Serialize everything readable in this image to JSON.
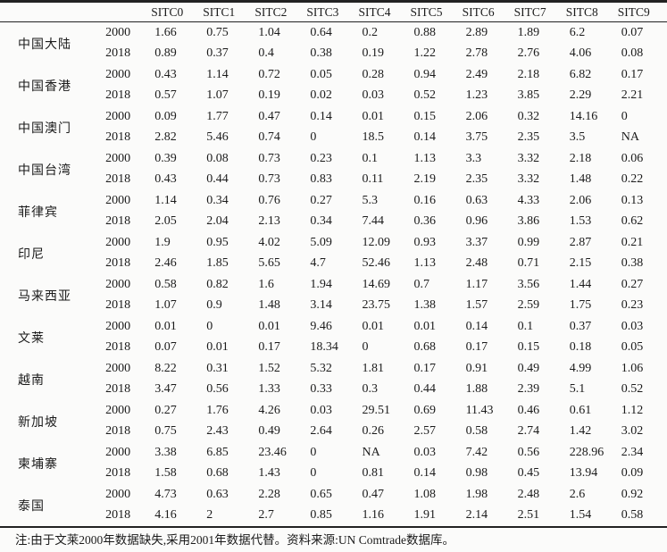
{
  "table": {
    "col_headers": [
      "SITC0",
      "SITC1",
      "SITC2",
      "SITC3",
      "SITC4",
      "SITC5",
      "SITC6",
      "SITC7",
      "SITC8",
      "SITC9"
    ],
    "regions": [
      {
        "name": "中国大陆",
        "rows": [
          {
            "year": "2000",
            "values": [
              "1.66",
              "0.75",
              "1.04",
              "0.64",
              "0.2",
              "0.88",
              "2.89",
              "1.89",
              "6.2",
              "0.07"
            ]
          },
          {
            "year": "2018",
            "values": [
              "0.89",
              "0.37",
              "0.4",
              "0.38",
              "0.19",
              "1.22",
              "2.78",
              "2.76",
              "4.06",
              "0.08"
            ]
          }
        ]
      },
      {
        "name": "中国香港",
        "rows": [
          {
            "year": "2000",
            "values": [
              "0.43",
              "1.14",
              "0.72",
              "0.05",
              "0.28",
              "0.94",
              "2.49",
              "2.18",
              "6.82",
              "0.17"
            ]
          },
          {
            "year": "2018",
            "values": [
              "0.57",
              "1.07",
              "0.19",
              "0.02",
              "0.03",
              "0.52",
              "1.23",
              "3.85",
              "2.29",
              "2.21"
            ]
          }
        ]
      },
      {
        "name": "中国澳门",
        "rows": [
          {
            "year": "2000",
            "values": [
              "0.09",
              "1.77",
              "0.47",
              "0.14",
              "0.01",
              "0.15",
              "2.06",
              "0.32",
              "14.16",
              "0"
            ]
          },
          {
            "year": "2018",
            "values": [
              "2.82",
              "5.46",
              "0.74",
              "0",
              "18.5",
              "0.14",
              "3.75",
              "2.35",
              "3.5",
              "NA"
            ]
          }
        ]
      },
      {
        "name": "中国台湾",
        "rows": [
          {
            "year": "2000",
            "values": [
              "0.39",
              "0.08",
              "0.73",
              "0.23",
              "0.1",
              "1.13",
              "3.3",
              "3.32",
              "2.18",
              "0.06"
            ]
          },
          {
            "year": "2018",
            "values": [
              "0.43",
              "0.44",
              "0.73",
              "0.83",
              "0.11",
              "2.19",
              "2.35",
              "3.32",
              "1.48",
              "0.22"
            ]
          }
        ]
      },
      {
        "name": "菲律宾",
        "rows": [
          {
            "year": "2000",
            "values": [
              "1.14",
              "0.34",
              "0.76",
              "0.27",
              "5.3",
              "0.16",
              "0.63",
              "4.33",
              "2.06",
              "0.13"
            ]
          },
          {
            "year": "2018",
            "values": [
              "2.05",
              "2.04",
              "2.13",
              "0.34",
              "7.44",
              "0.36",
              "0.96",
              "3.86",
              "1.53",
              "0.62"
            ]
          }
        ]
      },
      {
        "name": "印尼",
        "rows": [
          {
            "year": "2000",
            "values": [
              "1.9",
              "0.95",
              "4.02",
              "5.09",
              "12.09",
              "0.93",
              "3.37",
              "0.99",
              "2.87",
              "0.21"
            ]
          },
          {
            "year": "2018",
            "values": [
              "2.46",
              "1.85",
              "5.65",
              "4.7",
              "52.46",
              "1.13",
              "2.48",
              "0.71",
              "2.15",
              "0.38"
            ]
          }
        ]
      },
      {
        "name": "马来西亚",
        "rows": [
          {
            "year": "2000",
            "values": [
              "0.58",
              "0.82",
              "1.6",
              "1.94",
              "14.69",
              "0.7",
              "1.17",
              "3.56",
              "1.44",
              "0.27"
            ]
          },
          {
            "year": "2018",
            "values": [
              "1.07",
              "0.9",
              "1.48",
              "3.14",
              "23.75",
              "1.38",
              "1.57",
              "2.59",
              "1.75",
              "0.23"
            ]
          }
        ]
      },
      {
        "name": "文莱",
        "rows": [
          {
            "year": "2000",
            "values": [
              "0.01",
              "0",
              "0.01",
              "9.46",
              "0.01",
              "0.01",
              "0.14",
              "0.1",
              "0.37",
              "0.03"
            ]
          },
          {
            "year": "2018",
            "values": [
              "0.07",
              "0.01",
              "0.17",
              "18.34",
              "0",
              "0.68",
              "0.17",
              "0.15",
              "0.18",
              "0.05"
            ]
          }
        ]
      },
      {
        "name": "越南",
        "rows": [
          {
            "year": "2000",
            "values": [
              "8.22",
              "0.31",
              "1.52",
              "5.32",
              "1.81",
              "0.17",
              "0.91",
              "0.49",
              "4.99",
              "1.06"
            ]
          },
          {
            "year": "2018",
            "values": [
              "3.47",
              "0.56",
              "1.33",
              "0.33",
              "0.3",
              "0.44",
              "1.88",
              "2.39",
              "5.1",
              "0.52"
            ]
          }
        ]
      },
      {
        "name": "新加坡",
        "rows": [
          {
            "year": "2000",
            "values": [
              "0.27",
              "1.76",
              "4.26",
              "0.03",
              "29.51",
              "0.69",
              "11.43",
              "0.46",
              "0.61",
              "1.12"
            ]
          },
          {
            "year": "2018",
            "values": [
              "0.75",
              "2.43",
              "0.49",
              "2.64",
              "0.26",
              "2.57",
              "0.58",
              "2.74",
              "1.42",
              "3.02"
            ]
          }
        ]
      },
      {
        "name": "柬埔寨",
        "rows": [
          {
            "year": "2000",
            "values": [
              "3.38",
              "6.85",
              "23.46",
              "0",
              "NA",
              "0.03",
              "7.42",
              "0.56",
              "228.96",
              "2.34"
            ]
          },
          {
            "year": "2018",
            "values": [
              "1.58",
              "0.68",
              "1.43",
              "0",
              "0.81",
              "0.14",
              "0.98",
              "0.45",
              "13.94",
              "0.09"
            ]
          }
        ]
      },
      {
        "name": "泰国",
        "rows": [
          {
            "year": "2000",
            "values": [
              "4.73",
              "0.63",
              "2.28",
              "0.65",
              "0.47",
              "1.08",
              "1.98",
              "2.48",
              "2.6",
              "0.92"
            ]
          },
          {
            "year": "2018",
            "values": [
              "4.16",
              "2",
              "2.7",
              "0.85",
              "1.16",
              "1.91",
              "2.14",
              "2.51",
              "1.54",
              "0.58"
            ]
          }
        ]
      }
    ]
  },
  "note": "注:由于文莱2000年数据缺失,采用2001年数据代替。资料来源:UN Comtrade数据库。"
}
